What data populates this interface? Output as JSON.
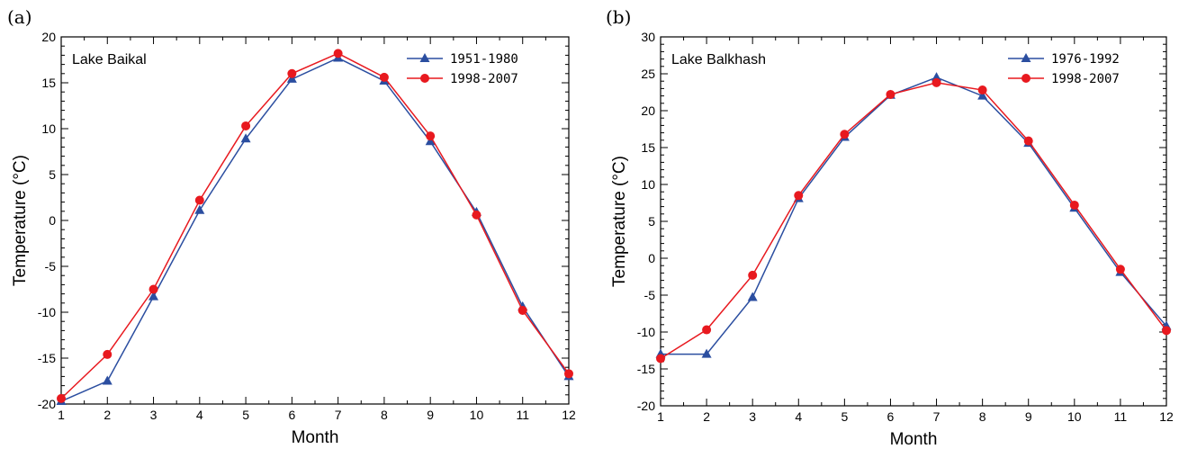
{
  "chart_data": [
    {
      "type": "line",
      "panel_label": "(a)",
      "title": "Lake Baikal",
      "xlabel": "Month",
      "ylabel": "Temperature (°C)",
      "x": [
        1,
        2,
        3,
        4,
        5,
        6,
        7,
        8,
        9,
        10,
        11,
        12
      ],
      "xlim": [
        1,
        12
      ],
      "ylim": [
        -20,
        20
      ],
      "yticks": [
        -20,
        -15,
        -10,
        -5,
        0,
        5,
        10,
        15,
        20
      ],
      "grid": false,
      "legend_position": "top-right",
      "series": [
        {
          "name": "1951-1980",
          "color": "#2b4ea0",
          "marker": "triangle",
          "values": [
            -19.7,
            -17.5,
            -8.3,
            1.1,
            8.9,
            15.4,
            17.7,
            15.2,
            8.6,
            0.9,
            -9.4,
            -17.0
          ]
        },
        {
          "name": "1998-2007",
          "color": "#e8191f",
          "marker": "circle",
          "values": [
            -19.4,
            -14.6,
            -7.5,
            2.2,
            10.3,
            16.0,
            18.2,
            15.6,
            9.2,
            0.6,
            -9.8,
            -16.7
          ]
        }
      ]
    },
    {
      "type": "line",
      "panel_label": "(b)",
      "title": "Lake Balkhash",
      "xlabel": "Month",
      "ylabel": "Temperature (°C)",
      "x": [
        1,
        2,
        3,
        4,
        5,
        6,
        7,
        8,
        9,
        10,
        11,
        12
      ],
      "xlim": [
        1,
        12
      ],
      "ylim": [
        -20,
        30
      ],
      "yticks": [
        -20,
        -15,
        -10,
        -5,
        0,
        5,
        10,
        15,
        20,
        25,
        30
      ],
      "grid": false,
      "legend_position": "top-right",
      "series": [
        {
          "name": "1976-1992",
          "color": "#2b4ea0",
          "marker": "triangle",
          "values": [
            -13.0,
            -13.0,
            -5.3,
            8.1,
            16.4,
            22.1,
            24.5,
            22.0,
            15.6,
            6.8,
            -1.9,
            -9.2
          ]
        },
        {
          "name": "1998-2007",
          "color": "#e8191f",
          "marker": "circle",
          "values": [
            -13.6,
            -9.7,
            -2.3,
            8.5,
            16.8,
            22.2,
            23.8,
            22.8,
            15.9,
            7.2,
            -1.5,
            -9.8
          ]
        }
      ]
    }
  ]
}
